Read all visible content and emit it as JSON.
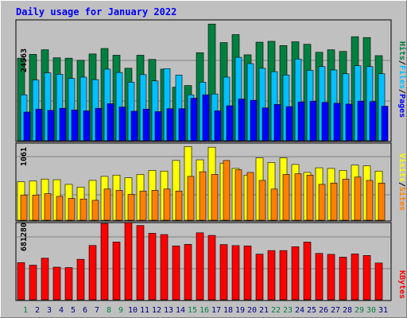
{
  "chart_data": [
    {
      "type": "bar",
      "title": "Daily usage for January 2022",
      "categories": [
        "1",
        "2",
        "3",
        "4",
        "5",
        "6",
        "7",
        "8",
        "9",
        "10",
        "11",
        "12",
        "13",
        "14",
        "15",
        "16",
        "17",
        "18",
        "19",
        "20",
        "21",
        "22",
        "23",
        "24",
        "25",
        "26",
        "27",
        "28",
        "29",
        "30",
        "31"
      ],
      "y_tick_label": "24563",
      "ylim": [
        0,
        28500
      ],
      "series": [
        {
          "name": "Hits",
          "color": "#008040",
          "values": [
            19600,
            20500,
            21600,
            19700,
            19600,
            19100,
            20600,
            21900,
            20300,
            17200,
            20300,
            19300,
            17000,
            12700,
            13100,
            20900,
            27700,
            23300,
            25200,
            20400,
            23400,
            23600,
            22600,
            23500,
            22900,
            21000,
            21600,
            21200,
            24700,
            24500,
            20200
          ]
        },
        {
          "name": "Files",
          "color": "#00c0ff",
          "values": [
            10900,
            14400,
            16100,
            15800,
            14800,
            15100,
            14500,
            17000,
            16200,
            13900,
            15700,
            14200,
            17100,
            15600,
            10900,
            13900,
            11100,
            15100,
            19800,
            18300,
            17200,
            16400,
            15600,
            19400,
            16700,
            17600,
            16800,
            15900,
            17800,
            17600,
            15900
          ]
        },
        {
          "name": "Pages",
          "color": "#0000ff",
          "values": [
            6800,
            7500,
            7200,
            7700,
            7300,
            7100,
            7700,
            8800,
            8000,
            7000,
            7500,
            6900,
            7600,
            7600,
            10100,
            10900,
            7100,
            8300,
            9900,
            9600,
            7800,
            8600,
            8100,
            9200,
            9400,
            9100,
            8900,
            8700,
            9400,
            9300,
            8200
          ]
        }
      ]
    },
    {
      "type": "bar",
      "categories": [
        "1",
        "2",
        "3",
        "4",
        "5",
        "6",
        "7",
        "8",
        "9",
        "10",
        "11",
        "12",
        "13",
        "14",
        "15",
        "16",
        "17",
        "18",
        "19",
        "20",
        "21",
        "22",
        "23",
        "24",
        "25",
        "26",
        "27",
        "28",
        "29",
        "30",
        "31"
      ],
      "y_tick_label": "1061",
      "ylim": [
        0,
        1150
      ],
      "series": [
        {
          "name": "Visits",
          "color": "#ffff00",
          "values": [
            580,
            590,
            620,
            610,
            540,
            500,
            600,
            660,
            680,
            640,
            690,
            750,
            740,
            900,
            1110,
            910,
            1100,
            860,
            780,
            680,
            940,
            870,
            940,
            840,
            720,
            790,
            780,
            750,
            830,
            820,
            740
          ]
        },
        {
          "name": "Sites",
          "color": "#ff8000",
          "values": [
            380,
            380,
            400,
            360,
            330,
            320,
            300,
            470,
            450,
            390,
            440,
            450,
            470,
            440,
            660,
            730,
            690,
            900,
            760,
            720,
            600,
            470,
            690,
            700,
            680,
            540,
            560,
            620,
            650,
            600,
            560
          ]
        }
      ]
    },
    {
      "type": "bar",
      "categories": [
        "1",
        "2",
        "3",
        "4",
        "5",
        "6",
        "7",
        "8",
        "9",
        "10",
        "11",
        "12",
        "13",
        "14",
        "15",
        "16",
        "17",
        "18",
        "19",
        "20",
        "21",
        "22",
        "23",
        "24",
        "25",
        "26",
        "27",
        "28",
        "29",
        "30",
        "31"
      ],
      "y_tick_label": "681280",
      "ylim": [
        0,
        740000
      ],
      "series": [
        {
          "name": "KBytes",
          "color": "#ff0000",
          "values": [
            360000,
            335000,
            403000,
            316000,
            312000,
            392000,
            526000,
            739000,
            560000,
            747000,
            720000,
            644000,
            632000,
            522000,
            537000,
            649000,
            624000,
            535000,
            525000,
            522000,
            442000,
            477000,
            477000,
            514000,
            559000,
            449000,
            440000,
            413000,
            444000,
            429000,
            356000
          ]
        }
      ]
    }
  ],
  "x_labels": [
    "1",
    "2",
    "3",
    "4",
    "5",
    "6",
    "7",
    "8",
    "9",
    "10",
    "11",
    "12",
    "13",
    "14",
    "15",
    "16",
    "17",
    "18",
    "19",
    "20",
    "21",
    "22",
    "23",
    "24",
    "25",
    "26",
    "27",
    "28",
    "29",
    "30",
    "31"
  ],
  "weekend_indices": [
    0,
    7,
    8,
    14,
    15,
    21,
    22,
    28,
    29
  ],
  "colors": {
    "background": "#c0c0c0",
    "plot_background": "#c0c0c0",
    "title": "#0000ff",
    "weekday_label": "#000080",
    "weekend_label": "#008040",
    "separator": "#000000",
    "gridline": "#808080"
  },
  "legend": {
    "top": [
      {
        "text": "Hits",
        "color": "#008040"
      },
      {
        "text": "/",
        "color": "#000000"
      },
      {
        "text": "Files",
        "color": "#00c0ff"
      },
      {
        "text": "/",
        "color": "#000000"
      },
      {
        "text": "Pages",
        "color": "#0000ff"
      }
    ],
    "middle": [
      {
        "text": "Visits",
        "color": "#ffff00"
      },
      {
        "text": "/",
        "color": "#000000"
      },
      {
        "text": "Sites",
        "color": "#ff8000"
      }
    ],
    "bottom": [
      {
        "text": "KBytes",
        "color": "#ff0000"
      }
    ]
  }
}
